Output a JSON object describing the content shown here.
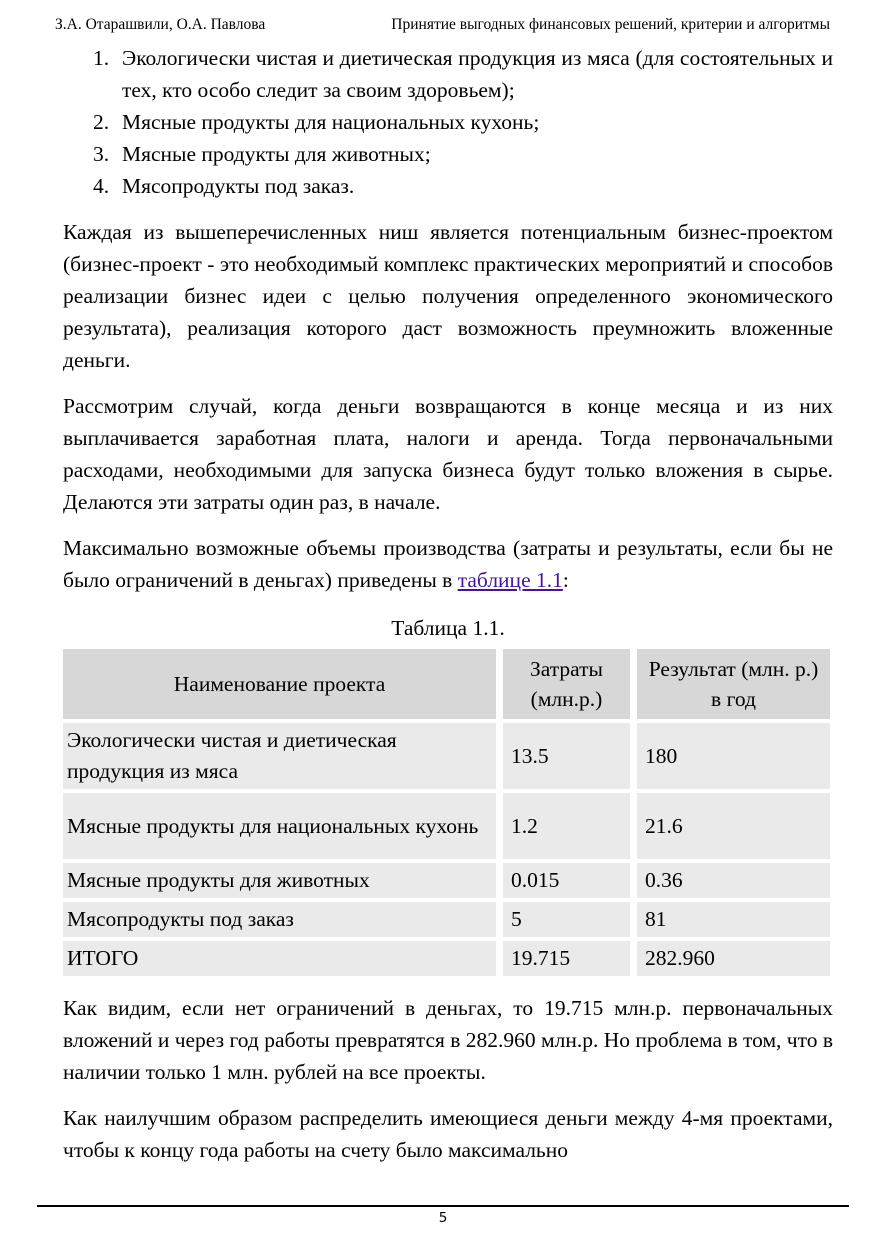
{
  "header": {
    "authors": "З.А. Отарашвили, О.А. Павлова",
    "book_title": "Принятие выгодных финансовых решений, критерии и алгоритмы"
  },
  "list": {
    "items": [
      {
        "num": "1.",
        "text": "Экологически чистая и диетическая продукция из мяса (для состоятельных и тех, кто особо следит за своим здоровьем);"
      },
      {
        "num": "2.",
        "text": "Мясные продукты для национальных кухонь;"
      },
      {
        "num": "3.",
        "text": "Мясные продукты для животных;"
      },
      {
        "num": "4.",
        "text": "Мясопродукты под заказ."
      }
    ]
  },
  "paragraphs": {
    "p1": "Каждая из вышеперечисленных ниш является потенциальным бизнес-проектом (бизнес-проект - это необходимый комплекс практических мероприятий и способов реализации бизнес идеи с целью получения определенного экономического результата), реализация которого даст возможность преумножить вложенные деньги.",
    "p2": "Рассмотрим случай, когда деньги возвращаются в конце месяца и из них выплачивается заработная плата, налоги и аренда. Тогда первоначальными расходами, необходимыми для запуска бизнеса будут только вложения в сырье. Делаются эти затраты один раз, в начале.",
    "p3_before_link": "Максимально возможные объемы производства (затраты и результаты, если бы не было ограничений в деньгах) приведены в ",
    "p3_link": "таблице 1.1",
    "p3_after_link": ":",
    "p4": "Как видим, если нет ограничений в деньгах, то 19.715 млн.р. первоначальных вложений и через год работы превратятся в 282.960 млн.р. Но проблема в том, что в наличии только 1 млн. рублей на все проекты.",
    "p5": "Как наилучшим образом распределить имеющиеся деньги между 4-мя проектами, чтобы к концу года работы на счету было максимально"
  },
  "table": {
    "caption": "Таблица 1.1.",
    "headers": {
      "name": "Наименование проекта",
      "cost": "Затраты (млн.р.)",
      "result": "Результат (млн. р.) в год"
    },
    "rows": [
      {
        "name": "Экологически чистая и диетическая продукция из мяса",
        "cost": "13.5",
        "result": "180"
      },
      {
        "name": "Мясные продукты для национальных кухонь",
        "cost": "1.2",
        "result": "21.6"
      },
      {
        "name": "Мясные продукты для животных",
        "cost": "0.015",
        "result": "0.36"
      },
      {
        "name": "Мясопродукты под заказ",
        "cost": "5",
        "result": "81"
      },
      {
        "name": "ИТОГО",
        "cost": "19.715",
        "result": "282.960"
      }
    ]
  },
  "footer": {
    "page_number": "5"
  },
  "colors": {
    "table_header_bg": "#d7d7d7",
    "table_row_bg": "#eaeaea",
    "link_color": "#45139e"
  }
}
